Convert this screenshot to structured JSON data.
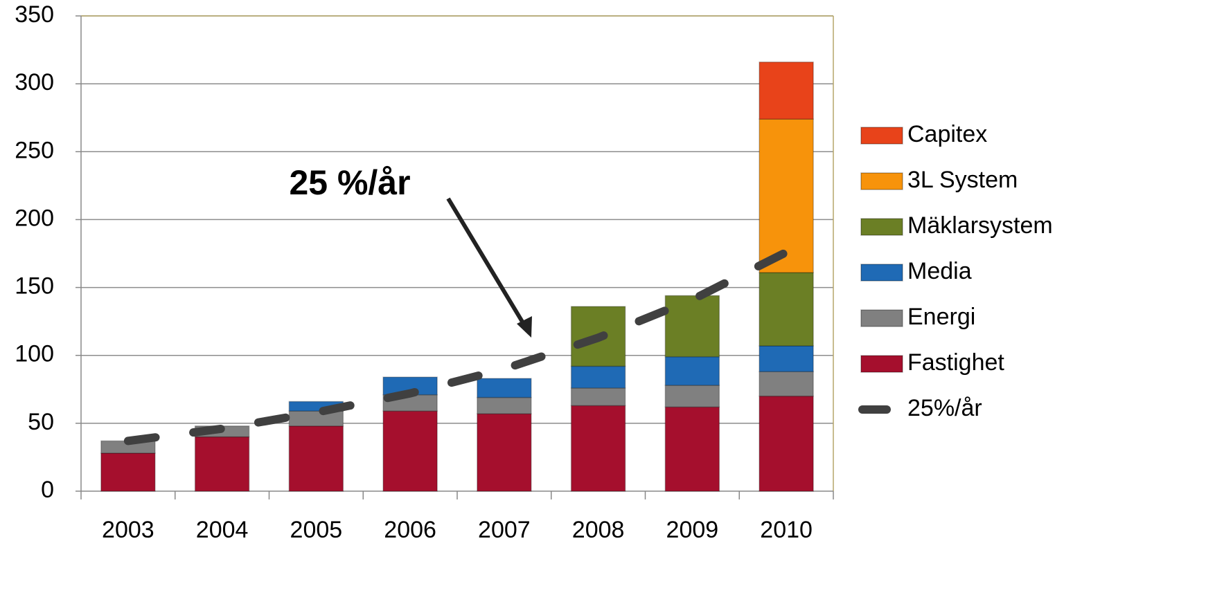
{
  "chart_data": {
    "type": "bar",
    "stacked": true,
    "categories": [
      "2003",
      "2004",
      "2005",
      "2006",
      "2007",
      "2008",
      "2009",
      "2010"
    ],
    "series": [
      {
        "name": "Fastighet",
        "color": "#a50f2d",
        "values": [
          28,
          40,
          48,
          59,
          57,
          63,
          62,
          70
        ]
      },
      {
        "name": "Energi",
        "color": "#808080",
        "values": [
          9,
          8,
          11,
          12,
          12,
          13,
          16,
          18
        ]
      },
      {
        "name": "Media",
        "color": "#1f6ab5",
        "values": [
          0,
          0,
          7,
          13,
          14,
          16,
          21,
          19
        ]
      },
      {
        "name": "Mäklarsystem",
        "color": "#6b7f25",
        "values": [
          0,
          0,
          0,
          0,
          0,
          44,
          45,
          54
        ]
      },
      {
        "name": "3L System",
        "color": "#f7930b",
        "values": [
          0,
          0,
          0,
          0,
          0,
          0,
          0,
          113
        ]
      },
      {
        "name": "Capitex",
        "color": "#e8431a",
        "values": [
          0,
          0,
          0,
          0,
          0,
          0,
          0,
          42
        ]
      }
    ],
    "line": {
      "name": "25%/år",
      "color": "#404040",
      "values": [
        37,
        46,
        58,
        72,
        90,
        113,
        141,
        176
      ]
    },
    "annotation": "25 %/år",
    "ylim": [
      0,
      350
    ],
    "yticks": [
      0,
      50,
      100,
      150,
      200,
      250,
      300,
      350
    ],
    "grid": true
  }
}
